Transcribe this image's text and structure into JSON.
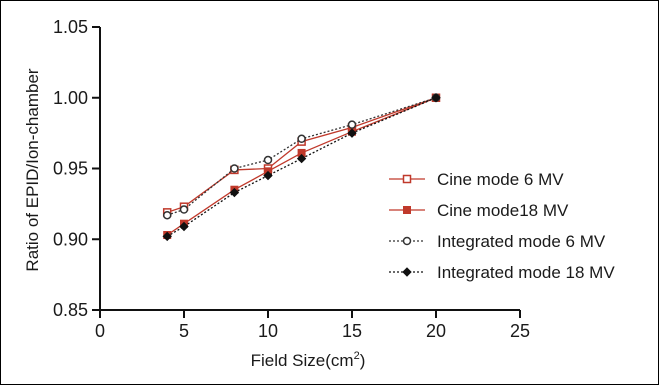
{
  "chart_data": {
    "type": "line",
    "title": "",
    "xlabel": "Field Size(cm",
    "xlabel_superscript": "2",
    "xlabel_suffix": ")",
    "ylabel": "Ratio of EPID/Ion-chamber",
    "xlim": [
      0,
      25
    ],
    "ylim": [
      0.85,
      1.05
    ],
    "x_ticks": [
      "0",
      "5",
      "10",
      "15",
      "20",
      "25"
    ],
    "y_ticks": [
      "0.85",
      "0.90",
      "0.95",
      "1.00",
      "1.05"
    ],
    "grid": false,
    "legend_position": "right",
    "series": [
      {
        "name": "Cine mode 6 MV",
        "marker": "open-square",
        "line": "solid",
        "color": "#c0392b",
        "x": [
          4,
          5,
          8,
          10,
          12,
          15,
          20
        ],
        "values": [
          0.919,
          0.923,
          0.949,
          0.95,
          0.969,
          0.979,
          1.0
        ]
      },
      {
        "name": "Cine mode18 MV",
        "marker": "filled-square",
        "line": "solid",
        "color": "#c0392b",
        "x": [
          4,
          5,
          8,
          10,
          12,
          15,
          20
        ],
        "values": [
          0.903,
          0.911,
          0.935,
          0.948,
          0.961,
          0.976,
          1.0
        ]
      },
      {
        "name": "Integrated mode 6 MV",
        "marker": "open-circle",
        "line": "dotted",
        "color": "#333333",
        "x": [
          4,
          5,
          8,
          10,
          12,
          15,
          20
        ],
        "values": [
          0.917,
          0.921,
          0.95,
          0.956,
          0.971,
          0.981,
          1.0
        ]
      },
      {
        "name": "Integrated mode 18 MV",
        "marker": "filled-diamond",
        "line": "dotted",
        "color": "#111111",
        "x": [
          4,
          5,
          8,
          10,
          12,
          15,
          20
        ],
        "values": [
          0.902,
          0.909,
          0.933,
          0.945,
          0.957,
          0.975,
          1.0
        ]
      }
    ]
  }
}
